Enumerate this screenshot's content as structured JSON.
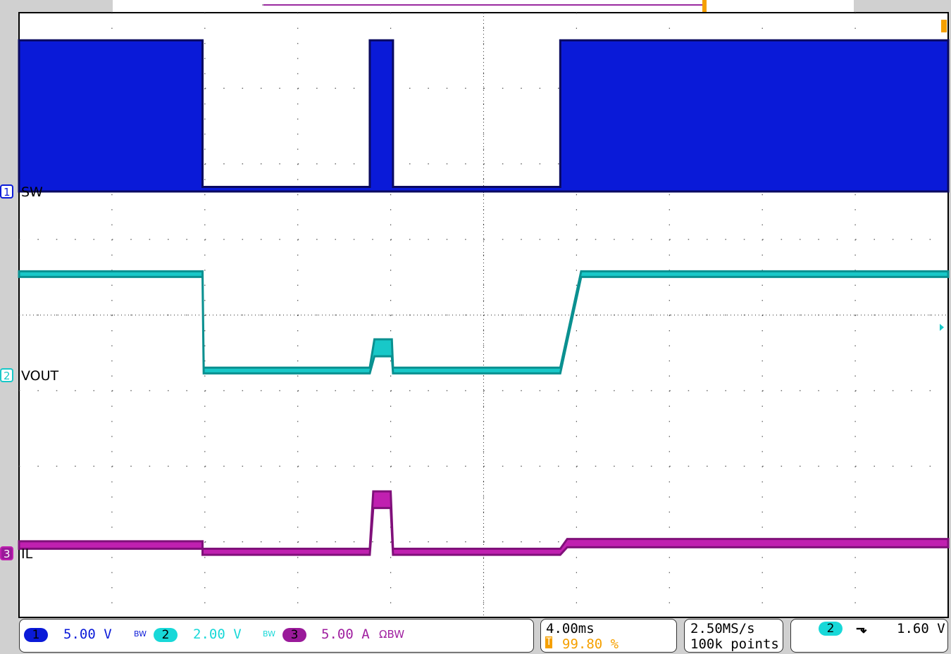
{
  "chart_data": {
    "type": "line",
    "title": "",
    "xlim_ms": [
      -20,
      20
    ],
    "divisions": {
      "horizontal": 10,
      "vertical": 8
    },
    "grid": true,
    "channels": [
      {
        "number": "1",
        "name": "SW",
        "scale": "5.00 V",
        "color": "#0a1ad8",
        "dark": "#0a0a60",
        "units_per_div": 5,
        "envelope": [
          [
            -20,
            0,
            10
          ],
          [
            -12.1,
            0,
            10
          ],
          [
            -12.1,
            0,
            0.3
          ],
          [
            -4.9,
            0,
            0.3
          ],
          [
            -4.9,
            0,
            10
          ],
          [
            -3.9,
            0,
            10
          ],
          [
            -3.9,
            0,
            0.3
          ],
          [
            3.3,
            0,
            0.3
          ],
          [
            3.3,
            0,
            10
          ],
          [
            20,
            0,
            10
          ]
        ]
      },
      {
        "number": "2",
        "name": "VOUT",
        "scale": "2.00 V",
        "color": "#18c8c8",
        "dark": "#0a9090",
        "units_per_div": 2,
        "envelope": [
          [
            -20,
            2.6,
            2.75
          ],
          [
            -12.1,
            2.6,
            2.75
          ],
          [
            -12.05,
            0.05,
            0.2
          ],
          [
            -4.9,
            0.05,
            0.2
          ],
          [
            -4.7,
            0.5,
            0.95
          ],
          [
            -3.95,
            0.5,
            0.95
          ],
          [
            -3.9,
            0.05,
            0.2
          ],
          [
            3.3,
            0.05,
            0.2
          ],
          [
            4.2,
            2.6,
            2.75
          ],
          [
            20,
            2.6,
            2.75
          ]
        ]
      },
      {
        "number": "3",
        "name": "IL",
        "scale": "5.00 A",
        "color": "#c020b0",
        "dark": "#80107a",
        "units_per_div": 5,
        "envelope": [
          [
            -20,
            0.3,
            0.8
          ],
          [
            -12.1,
            0.3,
            0.8
          ],
          [
            -12.1,
            -0.1,
            0.3
          ],
          [
            -4.9,
            -0.1,
            0.3
          ],
          [
            -4.75,
            3.0,
            4.1
          ],
          [
            -4.0,
            3.0,
            4.1
          ],
          [
            -3.9,
            -0.1,
            0.3
          ],
          [
            3.3,
            -0.1,
            0.3
          ],
          [
            3.6,
            0.4,
            0.95
          ],
          [
            20,
            0.4,
            0.95
          ]
        ]
      }
    ]
  },
  "readouts": {
    "ch1_num": "1",
    "ch1_scale": "5.00 V",
    "ch1_bw": "BW",
    "ch2_num": "2",
    "ch2_scale": "2.00 V",
    "ch2_bw": "BW",
    "ch3_num": "3",
    "ch3_scale": "5.00 A",
    "ch3_bw": "ΩBW",
    "timebase": "4.00ms",
    "trigger_position": "99.80 %",
    "trigger_icon": "T",
    "sample_rate": "2.50MS/s",
    "record_length": "100k points",
    "trigger_source": "2",
    "trigger_slope": "falling-edge-icon",
    "trigger_level": "1.60 V"
  },
  "colors": {
    "accent_trigger": "#f5a000"
  }
}
